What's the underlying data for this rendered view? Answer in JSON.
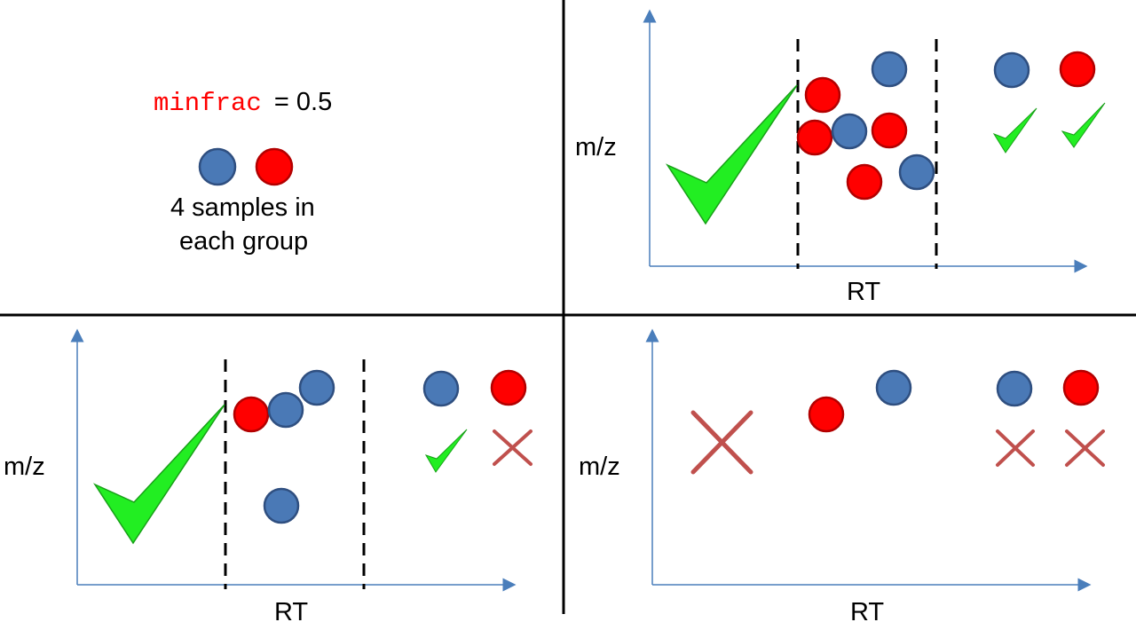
{
  "legend": {
    "param_name": "minfrac",
    "param_value_text": "= 0.5",
    "samples_line1": "4 samples in",
    "samples_line2": "each group"
  },
  "panels": {
    "top_right": {
      "ylabel": "m/z",
      "xlabel": "RT"
    },
    "bottom_left": {
      "ylabel": "m/z",
      "xlabel": "RT"
    },
    "bottom_right": {
      "ylabel": "m/z",
      "xlabel": "RT"
    }
  },
  "colors": {
    "group_blue": "#4a79b6",
    "group_blue_stroke": "#2f4f80",
    "group_red": "#ff0000",
    "group_red_stroke": "#b30000",
    "param_text": "#ff0000",
    "check": "#22ee22",
    "check_stroke": "#18a018",
    "cross": "#c0504d",
    "axis": "#4a7ebb",
    "divider": "#000000"
  },
  "icons": {
    "accept": "check-icon",
    "reject": "cross-icon"
  }
}
